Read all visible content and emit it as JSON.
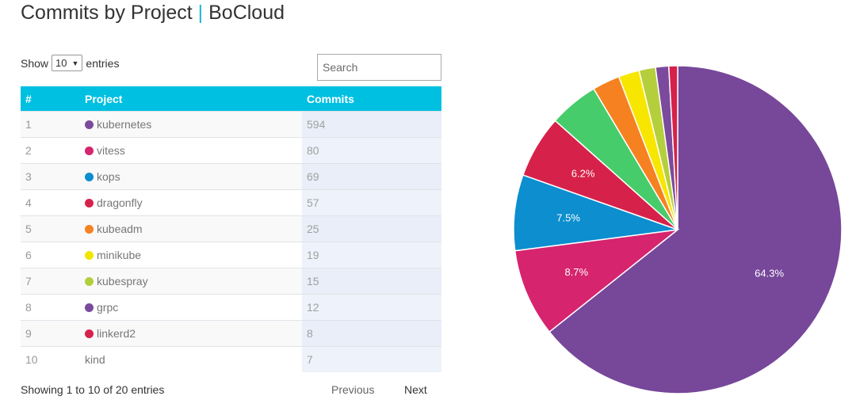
{
  "title": {
    "main": "Commits by Project",
    "separator": "|",
    "org": "BoCloud"
  },
  "controls": {
    "show_label": "Show",
    "entries_value": "10",
    "entries_label": "entries",
    "search_placeholder": "Search"
  },
  "table": {
    "headers": [
      "#",
      "Project",
      "Commits"
    ],
    "rows": [
      {
        "rank": "1",
        "project": "kubernetes",
        "commits": "594",
        "color": "#7c4a9c"
      },
      {
        "rank": "2",
        "project": "vitess",
        "commits": "80",
        "color": "#d6246e"
      },
      {
        "rank": "3",
        "project": "kops",
        "commits": "69",
        "color": "#0c8ecf"
      },
      {
        "rank": "4",
        "project": "dragonfly",
        "commits": "57",
        "color": "#d6224a"
      },
      {
        "rank": "5",
        "project": "kubeadm",
        "commits": "25",
        "color": "#f68121"
      },
      {
        "rank": "6",
        "project": "minikube",
        "commits": "19",
        "color": "#f2e600"
      },
      {
        "rank": "7",
        "project": "kubespray",
        "commits": "15",
        "color": "#b1cf3c"
      },
      {
        "rank": "8",
        "project": "grpc",
        "commits": "12",
        "color": "#7c4a9c"
      },
      {
        "rank": "9",
        "project": "linkerd2",
        "commits": "8",
        "color": "#d6224a"
      },
      {
        "rank": "10",
        "project": "kind",
        "commits": "7",
        "color": ""
      }
    ]
  },
  "footer": {
    "info": "Showing 1 to 10 of 20 entries",
    "previous": "Previous",
    "next": "Next"
  },
  "chart_data": {
    "type": "pie",
    "slices": [
      {
        "value": 594,
        "color": "#77479a",
        "label": "64.3%"
      },
      {
        "value": 80,
        "color": "#d6246e",
        "label": "8.7%"
      },
      {
        "value": 69,
        "color": "#0c8ecf",
        "label": "7.5%"
      },
      {
        "value": 57,
        "color": "#d6224a",
        "label": "6.2%"
      },
      {
        "value": 45,
        "color": "#46cc6a",
        "label": ""
      },
      {
        "value": 25,
        "color": "#f68121",
        "label": ""
      },
      {
        "value": 19,
        "color": "#f7e600",
        "label": ""
      },
      {
        "value": 15,
        "color": "#b5cf3c",
        "label": ""
      },
      {
        "value": 12,
        "color": "#7b4a9c",
        "label": ""
      },
      {
        "value": 8,
        "color": "#d6224a",
        "label": ""
      }
    ]
  }
}
